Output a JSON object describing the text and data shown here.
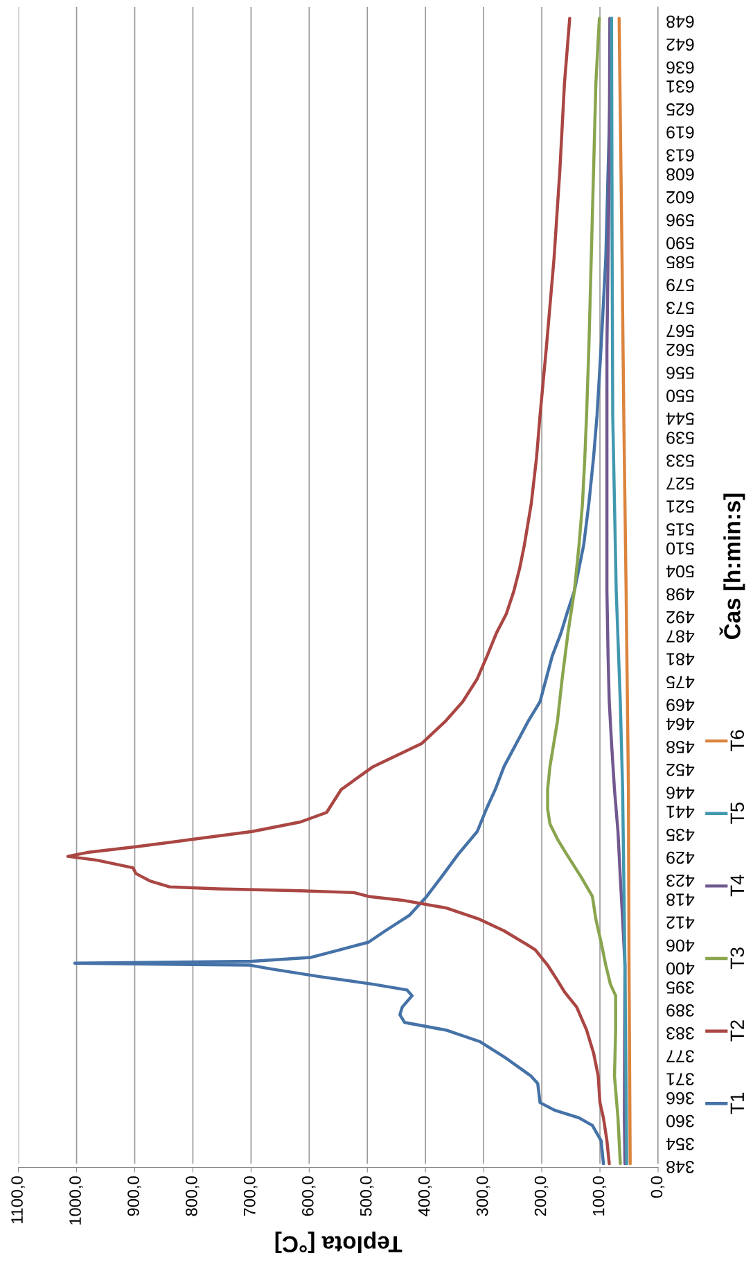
{
  "chart_data": {
    "type": "line",
    "orientation": "horizontal",
    "xlabel": "Teplota [°C]",
    "ylabel": "Čas [h:min:s]",
    "xlim": [
      1100,
      0
    ],
    "xticks": [
      {
        "value": 1100,
        "label": "1100,0"
      },
      {
        "value": 1000,
        "label": "1000,0"
      },
      {
        "value": 900,
        "label": "900,0"
      },
      {
        "value": 800,
        "label": "800,0"
      },
      {
        "value": 700,
        "label": "700,0"
      },
      {
        "value": 600,
        "label": "600,0"
      },
      {
        "value": 500,
        "label": "500,0"
      },
      {
        "value": 400,
        "label": "400,0"
      },
      {
        "value": 300,
        "label": "300,0"
      },
      {
        "value": 200,
        "label": "200,0"
      },
      {
        "value": 100,
        "label": "100,0"
      },
      {
        "value": 0,
        "label": "0,0"
      }
    ],
    "ylim": [
      348,
      651
    ],
    "yticks": [
      348,
      354,
      360,
      366,
      371,
      377,
      383,
      389,
      395,
      400,
      406,
      412,
      418,
      423,
      429,
      435,
      441,
      446,
      452,
      458,
      464,
      469,
      475,
      481,
      487,
      492,
      498,
      504,
      510,
      515,
      521,
      527,
      533,
      539,
      544,
      550,
      556,
      562,
      567,
      573,
      579,
      585,
      590,
      596,
      602,
      608,
      613,
      619,
      625,
      631,
      636,
      642,
      648
    ],
    "grid": "x",
    "legend": "right",
    "line_style": "solid",
    "marker": "none",
    "series": [
      {
        "name": "T1",
        "color": "#4572a7",
        "x": [
          348,
          354,
          358,
          360,
          362,
          364,
          369,
          371,
          376,
          380,
          383,
          385,
          387,
          389,
          392,
          393.5,
          395,
          397,
          399,
          400,
          400.5,
          401,
          402,
          404,
          406,
          409,
          413,
          418,
          423,
          429,
          435,
          441,
          446,
          452,
          464,
          469,
          481,
          487,
          492,
          498,
          510,
          521,
          533,
          544,
          562,
          585,
          608,
          631,
          648
        ],
        "values": [
          94,
          98,
          113,
          136,
          178,
          203,
          207,
          219,
          265,
          307,
          365,
          436,
          444,
          440,
          423,
          432,
          490,
          582,
          665,
          702,
          1003,
          698,
          598,
          548,
          498,
          469,
          428,
          398,
          373,
          344,
          311,
          295,
          280,
          265,
          223,
          203,
          182,
          167,
          157,
          144,
          128,
          119,
          111,
          105,
          98,
          90,
          86,
          82,
          80
        ]
      },
      {
        "name": "T2",
        "color": "#aa4643",
        "x": [
          348,
          354,
          360,
          364,
          371,
          377,
          383,
          389,
          393,
          396,
          400,
          404,
          406,
          409,
          412,
          415,
          417,
          418,
          419,
          419.5,
          420,
          420.5,
          422,
          424,
          425.5,
          427.5,
          428.5,
          429.5,
          431,
          433,
          435,
          437.5,
          440,
          446,
          452,
          458,
          464,
          469,
          475,
          481,
          487,
          492,
          498,
          504,
          510,
          521,
          533,
          544,
          562,
          585,
          608,
          631,
          648
        ],
        "values": [
          84,
          88,
          94,
          100,
          103,
          111,
          123,
          140,
          161,
          173,
          190,
          211,
          232,
          265,
          307,
          365,
          440,
          498,
          523,
          615,
          757,
          840,
          873,
          898,
          903,
          965,
          1015,
          982,
          898,
          798,
          698,
          615,
          570,
          545,
          490,
          407,
          365,
          336,
          311,
          294,
          278,
          261,
          248,
          238,
          230,
          218,
          209,
          203,
          192,
          179,
          169,
          161,
          152
        ]
      },
      {
        "name": "T3",
        "color": "#89a54e",
        "x": [
          348,
          360,
          371,
          383,
          392,
          395,
          400,
          406,
          412,
          418,
          423,
          429,
          433,
          437,
          441,
          446,
          452,
          464,
          475,
          487,
          498,
          510,
          521,
          533,
          544,
          562,
          585,
          608,
          631,
          648
        ],
        "values": [
          65,
          69,
          75,
          73,
          73,
          82,
          90,
          98,
          107,
          113,
          132,
          157,
          173,
          186,
          190,
          190,
          186,
          173,
          165,
          155,
          144,
          136,
          130,
          126,
          123,
          119,
          115,
          111,
          107,
          101
        ]
      },
      {
        "name": "T4",
        "color": "#71588f",
        "x": [
          348,
          360,
          400,
          412,
          423,
          435,
          446,
          458,
          469,
          481,
          498,
          521,
          544,
          562,
          585,
          608,
          648
        ],
        "values": [
          57,
          58,
          57,
          61,
          65,
          69,
          75,
          80,
          84,
          86,
          88,
          88,
          88,
          88,
          86,
          84,
          83
        ]
      },
      {
        "name": "T5",
        "color": "#4198af",
        "x": [
          348,
          400,
          446,
          469,
          498,
          521,
          544,
          585,
          648
        ],
        "values": [
          54,
          57,
          61,
          65,
          72,
          75,
          78,
          79,
          80
        ]
      },
      {
        "name": "T6",
        "color": "#db843d",
        "x": [
          348,
          400,
          446,
          498,
          544,
          585,
          648
        ],
        "values": [
          48,
          50,
          51,
          55,
          59,
          62,
          67
        ]
      }
    ]
  }
}
